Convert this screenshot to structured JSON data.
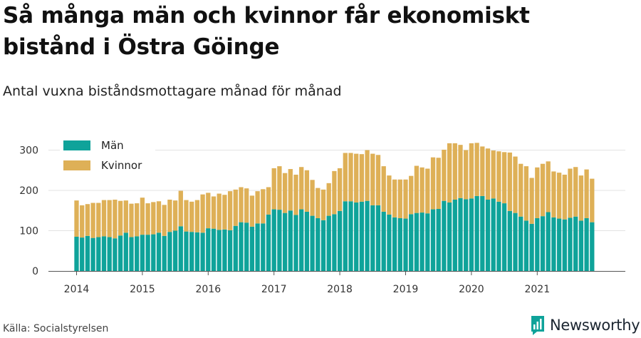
{
  "title": "Så många män och kvinnor får ekonomiskt bistånd i Östra Göinge",
  "subtitle": "Antal vuxna biståndsmottagare månad för månad",
  "source": "Källa: Socialstyrelsen",
  "brand": "Newsworthy",
  "chart_data": {
    "type": "bar",
    "stacked": true,
    "x_tick_labels": [
      "2014",
      "2015",
      "2016",
      "2017",
      "2018",
      "2019",
      "2020",
      "2021"
    ],
    "y_ticks": [
      0,
      100,
      200,
      300
    ],
    "ylim": [
      0,
      330
    ],
    "grid": true,
    "legend_position": "top-left",
    "first_period": "2014-01",
    "x": [
      "2014-01",
      "2014-02",
      "2014-03",
      "2014-04",
      "2014-05",
      "2014-06",
      "2014-07",
      "2014-08",
      "2014-09",
      "2014-10",
      "2014-11",
      "2014-12",
      "2015-01",
      "2015-02",
      "2015-03",
      "2015-04",
      "2015-05",
      "2015-06",
      "2015-07",
      "2015-08",
      "2015-09",
      "2015-10",
      "2015-11",
      "2015-12",
      "2016-01",
      "2016-02",
      "2016-03",
      "2016-04",
      "2016-05",
      "2016-06",
      "2016-07",
      "2016-08",
      "2016-09",
      "2016-10",
      "2016-11",
      "2016-12",
      "2017-01",
      "2017-02",
      "2017-03",
      "2017-04",
      "2017-05",
      "2017-06",
      "2017-07",
      "2017-08",
      "2017-09",
      "2017-10",
      "2017-11",
      "2017-12",
      "2018-01",
      "2018-02",
      "2018-03",
      "2018-04",
      "2018-05",
      "2018-06",
      "2018-07",
      "2018-08",
      "2018-09",
      "2018-10",
      "2018-11",
      "2018-12",
      "2019-01",
      "2019-02",
      "2019-03",
      "2019-04",
      "2019-05",
      "2019-06",
      "2019-07",
      "2019-08",
      "2019-09",
      "2019-10",
      "2019-11",
      "2019-12",
      "2020-01",
      "2020-02",
      "2020-03",
      "2020-04",
      "2020-05",
      "2020-06",
      "2020-07",
      "2020-08",
      "2020-09",
      "2020-10",
      "2020-11",
      "2020-12",
      "2021-01",
      "2021-02",
      "2021-03",
      "2021-04",
      "2021-05",
      "2021-06",
      "2021-07",
      "2021-08",
      "2021-09",
      "2021-10",
      "2021-11"
    ],
    "series": [
      {
        "name": "Män",
        "color": "#0fa39a",
        "values": [
          85,
          83,
          87,
          82,
          84,
          86,
          84,
          81,
          88,
          95,
          84,
          86,
          90,
          90,
          91,
          95,
          87,
          97,
          100,
          111,
          98,
          97,
          96,
          95,
          106,
          105,
          102,
          103,
          101,
          112,
          121,
          120,
          110,
          118,
          118,
          140,
          153,
          152,
          144,
          150,
          139,
          153,
          147,
          137,
          131,
          126,
          137,
          141,
          149,
          173,
          173,
          170,
          172,
          174,
          163,
          163,
          147,
          140,
          133,
          131,
          130,
          141,
          144,
          145,
          143,
          153,
          154,
          174,
          170,
          177,
          181,
          178,
          180,
          186,
          186,
          177,
          180,
          172,
          168,
          149,
          144,
          135,
          125,
          117,
          131,
          136,
          146,
          133,
          130,
          128,
          132,
          135,
          125,
          131,
          121
        ]
      },
      {
        "name": "Kvinnor",
        "color": "#deb057",
        "values": [
          90,
          80,
          79,
          87,
          85,
          90,
          92,
          96,
          86,
          80,
          83,
          82,
          92,
          78,
          80,
          78,
          77,
          80,
          75,
          88,
          78,
          75,
          80,
          95,
          88,
          80,
          90,
          86,
          97,
          90,
          87,
          85,
          77,
          80,
          85,
          68,
          102,
          108,
          99,
          103,
          100,
          105,
          103,
          89,
          75,
          76,
          81,
          107,
          106,
          120,
          120,
          121,
          118,
          126,
          128,
          125,
          113,
          97,
          94,
          96,
          97,
          95,
          117,
          112,
          111,
          129,
          127,
          127,
          147,
          140,
          132,
          122,
          137,
          132,
          123,
          127,
          119,
          125,
          127,
          145,
          140,
          131,
          135,
          114,
          126,
          130,
          126,
          114,
          114,
          111,
          122,
          123,
          112,
          121,
          108
        ]
      }
    ]
  }
}
